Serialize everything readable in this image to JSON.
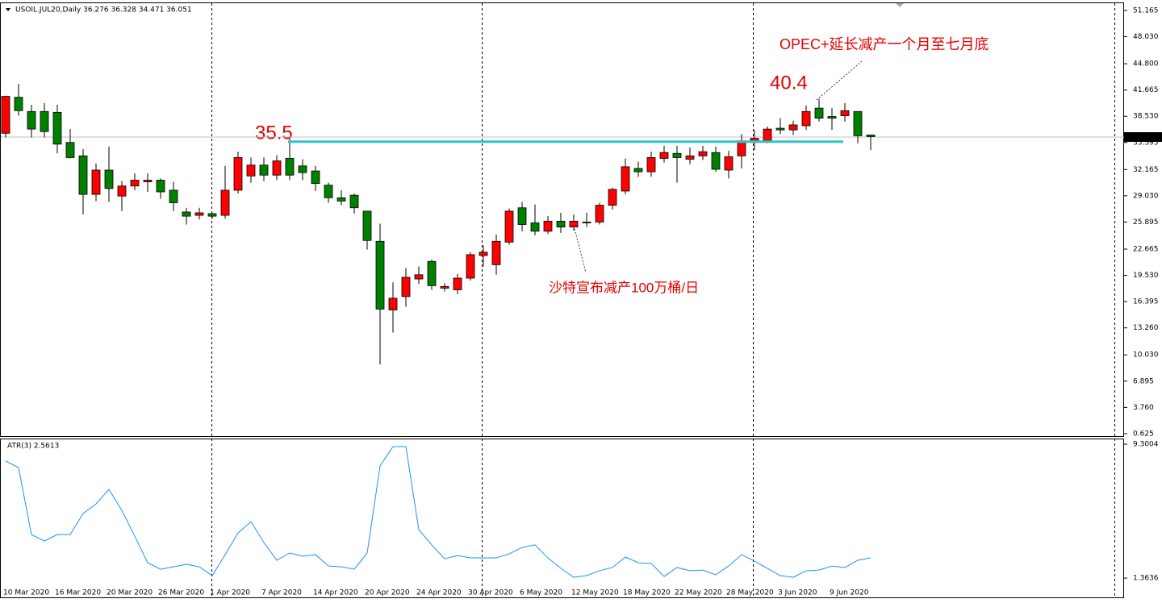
{
  "chart_data": [
    {
      "type": "candlestick",
      "title": "USOIL.JUL20,Daily 36.276 36.328 34.471 36.051",
      "categories": [
        "10 Mar 2020",
        null,
        null,
        null,
        "16 Mar 2020",
        null,
        null,
        null,
        "20 Mar 2020",
        null,
        null,
        null,
        "26 Mar 2020",
        null,
        null,
        null,
        "1 Apr 2020",
        null,
        null,
        null,
        "7 Apr 2020",
        null,
        null,
        null,
        "14 Apr 2020",
        null,
        null,
        null,
        "20 Apr 2020",
        null,
        null,
        null,
        "24 Apr 2020",
        null,
        null,
        null,
        "30 Apr 2020",
        null,
        null,
        null,
        "6 May 2020",
        null,
        null,
        null,
        "12 May 2020",
        null,
        null,
        null,
        "18 May 2020",
        null,
        null,
        null,
        "22 May 2020",
        null,
        null,
        null,
        "28 May 2020",
        null,
        null,
        null,
        "3 Jun 2020",
        null,
        null,
        null,
        "9 Jun 2020",
        null,
        null,
        null
      ],
      "open": [
        36.5,
        40.8,
        39.1,
        39.1,
        39.0,
        35.4,
        33.8,
        29.2,
        32.1,
        29.0,
        30.2,
        30.7,
        30.9,
        29.7,
        27.1,
        26.7,
        26.9,
        26.7,
        29.7,
        31.4,
        32.7,
        31.5,
        33.5,
        32.6,
        32.0,
        30.3,
        28.8,
        29.1,
        27.2,
        23.6,
        15.4,
        17.0,
        19.1,
        21.2,
        18.0,
        17.8,
        19.2,
        21.9,
        20.8,
        23.5,
        27.6,
        25.8,
        24.8,
        26.0,
        25.3,
        25.8,
        25.9,
        27.9,
        29.6,
        32.3,
        31.9,
        33.5,
        34.1,
        33.4,
        33.8,
        34.2,
        32.1,
        33.8,
        35.4,
        35.6,
        37.1,
        36.9,
        37.4,
        39.5,
        38.5,
        38.6,
        39.1,
        36.3
      ],
      "high": [
        41.0,
        42.4,
        39.9,
        40.1,
        39.9,
        37.0,
        34.6,
        32.9,
        34.9,
        30.8,
        31.7,
        31.7,
        31.1,
        30.7,
        27.6,
        27.6,
        27.0,
        32.6,
        34.3,
        33.6,
        33.6,
        33.9,
        35.9,
        33.4,
        32.6,
        30.6,
        29.7,
        29.3,
        27.2,
        25.7,
        18.7,
        20.4,
        20.6,
        21.4,
        18.6,
        19.7,
        22.3,
        23.1,
        24.4,
        27.5,
        28.3,
        28.0,
        26.6,
        27.0,
        26.8,
        27.0,
        28.2,
        30.0,
        33.5,
        33.1,
        34.3,
        35.0,
        35.0,
        34.8,
        35.0,
        34.9,
        34.4,
        36.4,
        36.9,
        37.3,
        38.3,
        38.0,
        39.8,
        40.6,
        39.5,
        40.1,
        39.1,
        36.3
      ],
      "low": [
        36.0,
        38.6,
        36.0,
        36.0,
        34.1,
        33.5,
        26.8,
        28.4,
        28.3,
        27.2,
        29.7,
        29.5,
        28.7,
        27.2,
        25.6,
        26.2,
        26.3,
        26.3,
        29.3,
        30.6,
        30.8,
        30.9,
        30.9,
        30.9,
        29.6,
        28.2,
        27.9,
        26.9,
        22.6,
        8.9,
        12.7,
        15.8,
        18.5,
        17.8,
        17.6,
        17.3,
        18.9,
        20.6,
        19.6,
        23.2,
        24.8,
        24.3,
        24.5,
        24.6,
        24.9,
        25.3,
        25.6,
        27.4,
        29.2,
        31.3,
        31.3,
        33.0,
        30.6,
        32.8,
        33.3,
        31.9,
        31.1,
        32.3,
        34.5,
        35.3,
        36.4,
        36.3,
        36.9,
        37.9,
        36.9,
        37.9,
        35.3,
        34.5
      ],
      "close": [
        40.9,
        39.2,
        37.0,
        36.7,
        35.2,
        33.6,
        29.2,
        32.1,
        29.9,
        30.2,
        30.9,
        30.9,
        29.5,
        28.2,
        26.6,
        27.0,
        26.6,
        29.7,
        33.6,
        32.7,
        31.5,
        33.2,
        31.5,
        31.8,
        30.5,
        28.8,
        28.4,
        27.6,
        23.7,
        15.5,
        16.8,
        19.3,
        19.6,
        18.3,
        18.2,
        19.2,
        22.0,
        22.3,
        23.6,
        27.2,
        25.6,
        24.8,
        26.0,
        25.3,
        26.0,
        25.9,
        27.9,
        29.8,
        32.5,
        31.9,
        33.6,
        34.2,
        33.6,
        33.8,
        34.3,
        32.2,
        33.7,
        35.6,
        35.9,
        37.0,
        36.9,
        37.5,
        39.1,
        38.3,
        38.3,
        39.2,
        36.2,
        36.1
      ],
      "up_color": "#ff0000",
      "down_color": "#008000",
      "ylim": [
        0.33,
        52.03
      ],
      "yticks": [
        0.625,
        {
          "value": 3.76,
          "label": "3.760"
        },
        6.895,
        {
          "value": 10.03,
          "label": "10.030"
        },
        {
          "value": 13.26,
          "label": "13.260"
        },
        16.395,
        {
          "value": 19.53,
          "label": "19.530"
        },
        22.665,
        25.895,
        {
          "value": 29.03,
          "label": "29.030"
        },
        32.165,
        35.395,
        {
          "value": 38.53,
          "label": "38.530"
        },
        41.665,
        {
          "value": 44.8,
          "label": "44.800"
        },
        {
          "value": 48.03,
          "label": "48.030"
        },
        51.165
      ],
      "last_price": 36.051,
      "level_line": 35.5,
      "level_color": "#2ec4c9",
      "peak_label": "40.4",
      "annotations": [
        "OPEC+延长减产一个月至七月底",
        "沙特宣布减产100万桶/日"
      ]
    },
    {
      "type": "line",
      "title": "ATR(3) 2.5613",
      "color": "#1e90ff",
      "values": [
        8.3,
        7.91,
        3.94,
        3.56,
        3.94,
        3.94,
        5.19,
        5.76,
        6.62,
        5.38,
        3.85,
        2.27,
        1.89,
        2.03,
        2.18,
        2.03,
        1.51,
        2.75,
        4.04,
        4.71,
        3.47,
        2.42,
        2.85,
        2.66,
        2.75,
        2.08,
        2.03,
        1.89,
        2.85,
        8.01,
        9.16,
        9.16,
        4.23,
        3.33,
        2.51,
        2.7,
        2.56,
        2.56,
        2.56,
        2.8,
        3.18,
        3.33,
        2.56,
        1.94,
        1.41,
        1.51,
        1.8,
        1.99,
        2.61,
        2.27,
        2.23,
        1.46,
        1.99,
        1.8,
        1.84,
        1.56,
        2.08,
        2.75,
        2.37,
        1.94,
        1.51,
        1.41,
        1.8,
        1.84,
        2.08,
        1.99,
        2.42,
        2.5613
      ],
      "ylim": [
        0.22,
        9.59
      ],
      "yticks": [
        1.3636,
        9.3004
      ]
    }
  ]
}
